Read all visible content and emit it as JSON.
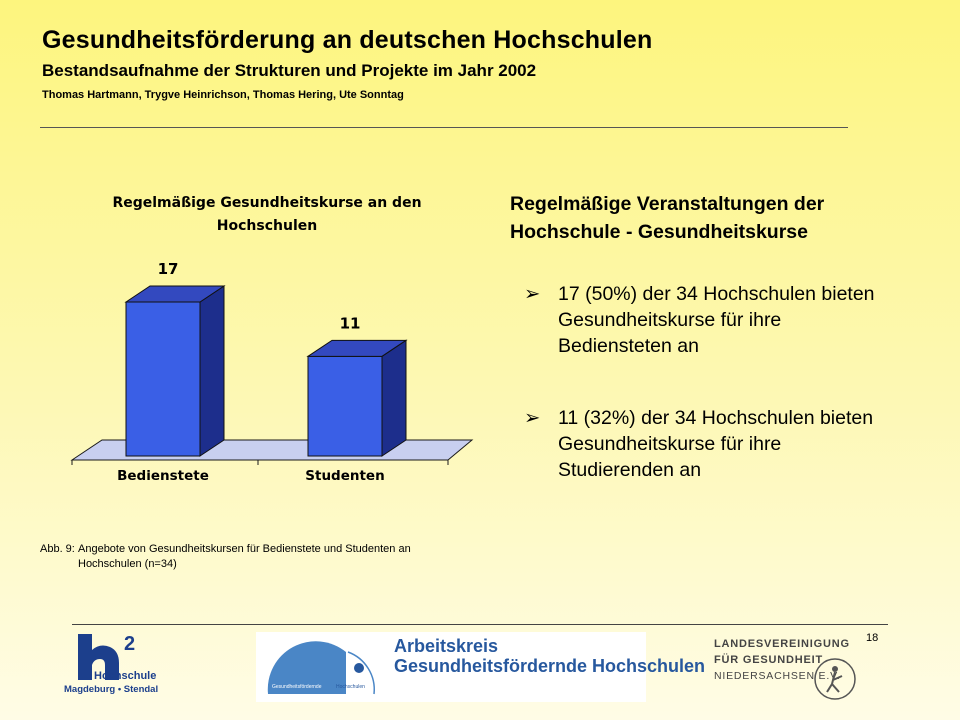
{
  "header": {
    "title": "Gesundheitsförderung an deutschen Hochschulen",
    "subtitle": "Bestandsaufnahme der Strukturen und Projekte im Jahr 2002",
    "authors": "Thomas Hartmann, Trygve Heinrichson, Thomas Hering, Ute Sonntag"
  },
  "chart_data": {
    "type": "bar",
    "title": "Regelmäßige Gesundheitskurse an den Hochschulen",
    "categories": [
      "Bedienstete",
      "Studenten"
    ],
    "values": [
      17,
      11
    ],
    "data_labels": [
      "17",
      "11"
    ],
    "colors": {
      "bar_front": "#3a5fe6",
      "bar_side": "#1d2e8c",
      "bar_top": "#3349bf",
      "floor": "#c8cff0"
    },
    "grid": false,
    "legend": "none"
  },
  "content": {
    "heading": "Regelmäßige Veranstaltungen der Hochschule - Gesundheitskurse",
    "bullets": [
      "17 (50%) der 34 Hochschulen bieten Gesundheitskurse für ihre Bediensteten an",
      "11 (32%) der 34 Hochschulen bieten Gesundheitskurse für ihre Studierenden an"
    ],
    "bullet_mark": "➢"
  },
  "caption": {
    "label": "Abb. 9:",
    "text": "Angebote von Gesundheitskursen für Bedienstete und Studenten an Hochschulen (n=34)"
  },
  "footer": {
    "page_number": "18",
    "logo_h2": {
      "name": "Hochschule",
      "location": "Magdeburg • Stendal"
    },
    "banner": {
      "line1": "Arbeitskreis",
      "line2": "Gesundheitsfördernde Hochschulen",
      "small_left": "Gesundheitsfördernde",
      "small_right": "Hochschulen"
    },
    "lvg": {
      "line1": "LANDESVEREINIGUNG",
      "line2": "FÜR GESUNDHEIT",
      "line3": "NIEDERSACHSEN E.V."
    }
  }
}
